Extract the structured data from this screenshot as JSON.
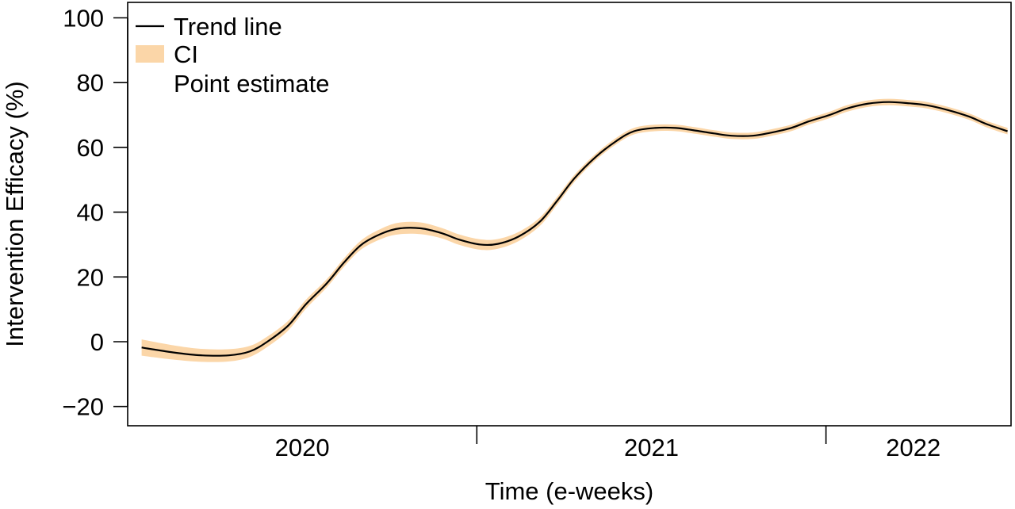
{
  "chart_data": {
    "type": "line",
    "xlabel": "Time (e-weeks)",
    "ylabel": "Intervention Efficacy (%)",
    "ylim": [
      -25,
      105
    ],
    "yticks": [
      -20,
      0,
      20,
      40,
      60,
      80,
      100
    ],
    "xlim": [
      2019.5,
      2022.03
    ],
    "xticks": [
      "2020",
      "2021",
      "2022"
    ],
    "x_tick_label_positions": [
      2020.0,
      2021.0,
      2021.75
    ],
    "x_tick_mark_positions": [
      2020.5,
      2021.5
    ],
    "grid": false,
    "legend": {
      "placement": "top-left",
      "entries": [
        {
          "label": "Trend line",
          "kind": "line",
          "color": "#000000"
        },
        {
          "label": "CI",
          "kind": "band",
          "color": "#f5b26b"
        },
        {
          "label": "Point estimate",
          "kind": "point",
          "color": "#000000"
        }
      ]
    },
    "colors": {
      "trend": "#000000",
      "ci_fill": "#fbd6a8",
      "ci_text": "#f5b26b"
    },
    "series": [
      {
        "name": "Trend line",
        "x": [
          2019.54,
          2019.63,
          2019.71,
          2019.79,
          2019.85,
          2019.9,
          2019.96,
          2020.01,
          2020.07,
          2020.12,
          2020.17,
          2020.23,
          2020.28,
          2020.34,
          2020.4,
          2020.45,
          2020.51,
          2020.56,
          2020.62,
          2020.68,
          2020.73,
          2020.78,
          2020.84,
          2020.9,
          2020.95,
          2021.01,
          2021.07,
          2021.12,
          2021.18,
          2021.23,
          2021.29,
          2021.34,
          2021.4,
          2021.45,
          2021.51,
          2021.56,
          2021.62,
          2021.68,
          2021.74,
          2021.79,
          2021.85,
          2021.91,
          2021.96,
          2022.02
        ],
        "y": [
          -1.8,
          -3.3,
          -4.2,
          -4.2,
          -3.0,
          0.0,
          5.0,
          11.5,
          18.0,
          24.5,
          30.0,
          33.5,
          35.0,
          35.0,
          33.5,
          31.5,
          30.0,
          30.2,
          32.5,
          37.0,
          43.5,
          50.5,
          57.0,
          62.0,
          65.0,
          66.0,
          66.0,
          65.3,
          64.3,
          63.6,
          63.6,
          64.5,
          66.0,
          68.0,
          70.0,
          72.0,
          73.5,
          74.0,
          73.6,
          73.0,
          71.5,
          69.5,
          67.2,
          65.0
        ]
      },
      {
        "name": "CI",
        "x": [
          2019.54,
          2019.63,
          2019.71,
          2019.79,
          2019.85,
          2019.9,
          2019.96,
          2020.01,
          2020.07,
          2020.12,
          2020.17,
          2020.23,
          2020.28,
          2020.34,
          2020.4,
          2020.45,
          2020.51,
          2020.56,
          2020.62,
          2020.68,
          2020.73,
          2020.78,
          2020.84,
          2020.9,
          2020.95,
          2021.01,
          2021.07,
          2021.12,
          2021.18,
          2021.23,
          2021.29,
          2021.34,
          2021.4,
          2021.45,
          2021.51,
          2021.56,
          2021.62,
          2021.68,
          2021.74,
          2021.79,
          2021.85,
          2021.91,
          2021.96,
          2022.02
        ],
        "lower": [
          -4.3,
          -5.5,
          -6.2,
          -6.1,
          -4.7,
          -1.6,
          3.5,
          10.1,
          16.7,
          23.2,
          28.6,
          31.9,
          33.2,
          33.2,
          31.9,
          29.9,
          28.4,
          28.7,
          31.1,
          35.7,
          42.3,
          49.4,
          56.0,
          61.0,
          64.0,
          65.0,
          65.0,
          64.3,
          63.3,
          62.6,
          62.6,
          63.5,
          65.0,
          67.0,
          69.0,
          71.0,
          72.5,
          73.0,
          72.6,
          72.0,
          70.5,
          68.5,
          66.2,
          64.0
        ],
        "upper": [
          0.7,
          -1.1,
          -2.2,
          -2.3,
          -1.3,
          1.6,
          6.5,
          12.9,
          19.3,
          25.8,
          31.4,
          35.1,
          36.8,
          36.8,
          35.1,
          33.1,
          31.6,
          31.7,
          33.9,
          38.3,
          44.7,
          51.6,
          58.0,
          63.0,
          66.0,
          67.0,
          67.0,
          66.3,
          65.3,
          64.6,
          64.6,
          65.5,
          67.0,
          69.0,
          71.0,
          73.0,
          74.5,
          75.0,
          74.6,
          74.0,
          72.5,
          70.5,
          68.2,
          66.0
        ]
      }
    ]
  }
}
